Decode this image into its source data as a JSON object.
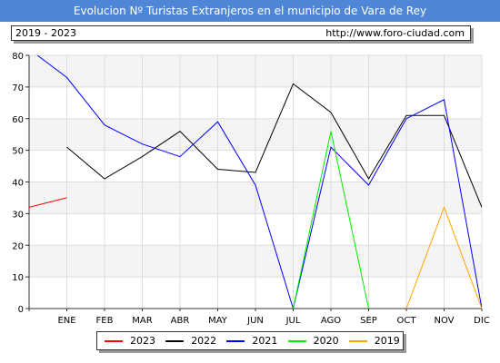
{
  "header": {
    "title": "Evolucion Nº Turistas Extranjeros en el municipio de Vara de Rey",
    "range": "2019 - 2023",
    "url": "http://www.foro-ciudad.com"
  },
  "colors": {
    "title_bar": "#4f86d6",
    "plot_band": "#f4f4f4",
    "grid": "#dddddd"
  },
  "chart_data": {
    "type": "line",
    "categories": [
      "ENE",
      "FEB",
      "MAR",
      "ABR",
      "MAY",
      "JUN",
      "JUL",
      "AGO",
      "SEP",
      "OCT",
      "NOV",
      "DIC"
    ],
    "ylim": [
      0,
      80
    ],
    "yticks": [
      0,
      10,
      20,
      30,
      40,
      50,
      60,
      70,
      80
    ],
    "grid": true,
    "legend_position": "bottom",
    "series": [
      {
        "name": "2023",
        "color": "#ff0000",
        "lead_in": 32,
        "values": [
          35,
          null,
          null,
          null,
          null,
          null,
          null,
          null,
          null,
          null,
          null,
          null
        ]
      },
      {
        "name": "2022",
        "color": "#000000",
        "values": [
          51,
          41,
          48,
          56,
          44,
          43,
          71,
          62,
          41,
          61,
          61,
          32
        ]
      },
      {
        "name": "2021",
        "color": "#0000ff",
        "lead_in": 82,
        "values": [
          73,
          58,
          52,
          48,
          59,
          39,
          0,
          51,
          39,
          60,
          66,
          0
        ]
      },
      {
        "name": "2020",
        "color": "#00ee00",
        "values": [
          null,
          null,
          null,
          null,
          null,
          null,
          0,
          56,
          0,
          null,
          null,
          null
        ]
      },
      {
        "name": "2019",
        "color": "#ffa500",
        "values": [
          null,
          null,
          null,
          null,
          null,
          null,
          null,
          null,
          null,
          0,
          32,
          0
        ]
      }
    ]
  }
}
